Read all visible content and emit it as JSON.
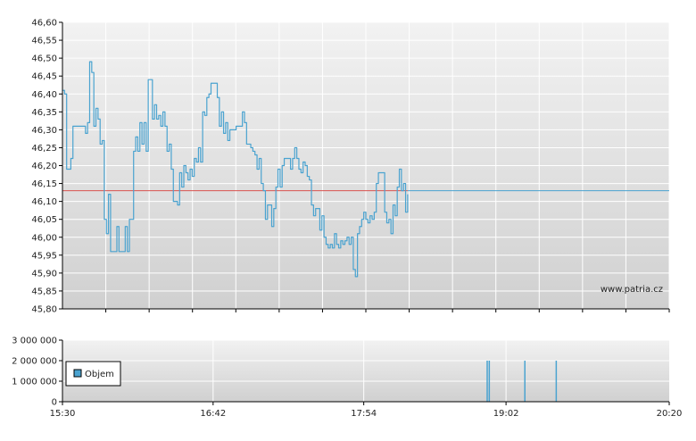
{
  "watermark": "www.patria.cz",
  "colors": {
    "price_line": "#4aa3d0",
    "reference_line": "#d9534f",
    "volume_bar": "#4aa3d0",
    "plot_bg_top": "#f2f2f2",
    "plot_bg_bottom": "#d0d0d0"
  },
  "chart_data": [
    {
      "type": "line",
      "title": "",
      "series": [
        {
          "values": [
            [
              "15:30",
              46.41
            ],
            [
              "15:31",
              46.4
            ],
            [
              "15:32",
              46.19
            ],
            [
              "15:33",
              46.19
            ],
            [
              "15:34",
              46.22
            ],
            [
              "15:35",
              46.31
            ],
            [
              "15:37",
              46.31
            ],
            [
              "15:40",
              46.31
            ],
            [
              "15:41",
              46.29
            ],
            [
              "15:42",
              46.32
            ],
            [
              "15:43",
              46.49
            ],
            [
              "15:44",
              46.46
            ],
            [
              "15:45",
              46.31
            ],
            [
              "15:46",
              46.36
            ],
            [
              "15:47",
              46.33
            ],
            [
              "15:48",
              46.26
            ],
            [
              "15:49",
              46.27
            ],
            [
              "15:50",
              46.05
            ],
            [
              "15:51",
              46.01
            ],
            [
              "15:52",
              46.12
            ],
            [
              "15:53",
              45.96
            ],
            [
              "15:55",
              45.96
            ],
            [
              "15:56",
              46.03
            ],
            [
              "15:57",
              45.96
            ],
            [
              "15:59",
              45.96
            ],
            [
              "16:00",
              46.03
            ],
            [
              "16:01",
              45.96
            ],
            [
              "16:02",
              46.05
            ],
            [
              "16:03",
              46.05
            ],
            [
              "16:04",
              46.24
            ],
            [
              "16:05",
              46.28
            ],
            [
              "16:06",
              46.24
            ],
            [
              "16:07",
              46.32
            ],
            [
              "16:08",
              46.26
            ],
            [
              "16:09",
              46.32
            ],
            [
              "16:10",
              46.24
            ],
            [
              "16:11",
              46.44
            ],
            [
              "16:12",
              46.44
            ],
            [
              "16:13",
              46.33
            ],
            [
              "16:14",
              46.37
            ],
            [
              "16:15",
              46.33
            ],
            [
              "16:16",
              46.34
            ],
            [
              "16:17",
              46.31
            ],
            [
              "16:18",
              46.35
            ],
            [
              "16:19",
              46.31
            ],
            [
              "16:20",
              46.24
            ],
            [
              "16:21",
              46.26
            ],
            [
              "16:22",
              46.19
            ],
            [
              "16:23",
              46.1
            ],
            [
              "16:25",
              46.09
            ],
            [
              "16:26",
              46.18
            ],
            [
              "16:27",
              46.14
            ],
            [
              "16:28",
              46.2
            ],
            [
              "16:29",
              46.18
            ],
            [
              "16:30",
              46.16
            ],
            [
              "16:31",
              46.19
            ],
            [
              "16:32",
              46.17
            ],
            [
              "16:33",
              46.22
            ],
            [
              "16:34",
              46.21
            ],
            [
              "16:35",
              46.25
            ],
            [
              "16:36",
              46.21
            ],
            [
              "16:37",
              46.35
            ],
            [
              "16:38",
              46.34
            ],
            [
              "16:39",
              46.39
            ],
            [
              "16:40",
              46.4
            ],
            [
              "16:41",
              46.43
            ],
            [
              "16:43",
              46.43
            ],
            [
              "16:44",
              46.39
            ],
            [
              "16:45",
              46.31
            ],
            [
              "16:46",
              46.35
            ],
            [
              "16:47",
              46.29
            ],
            [
              "16:48",
              46.32
            ],
            [
              "16:49",
              46.27
            ],
            [
              "16:50",
              46.3
            ],
            [
              "16:52",
              46.3
            ],
            [
              "16:53",
              46.31
            ],
            [
              "16:55",
              46.31
            ],
            [
              "16:56",
              46.35
            ],
            [
              "16:57",
              46.32
            ],
            [
              "16:58",
              46.26
            ],
            [
              "17:00",
              46.25
            ],
            [
              "17:01",
              46.24
            ],
            [
              "17:02",
              46.23
            ],
            [
              "17:03",
              46.19
            ],
            [
              "17:04",
              46.22
            ],
            [
              "17:05",
              46.15
            ],
            [
              "17:06",
              46.13
            ],
            [
              "17:07",
              46.05
            ],
            [
              "17:08",
              46.09
            ],
            [
              "17:09",
              46.09
            ],
            [
              "17:10",
              46.03
            ],
            [
              "17:11",
              46.08
            ],
            [
              "17:12",
              46.14
            ],
            [
              "17:13",
              46.19
            ],
            [
              "17:14",
              46.14
            ],
            [
              "17:15",
              46.2
            ],
            [
              "17:16",
              46.22
            ],
            [
              "17:18",
              46.22
            ],
            [
              "17:19",
              46.19
            ],
            [
              "17:20",
              46.22
            ],
            [
              "17:21",
              46.25
            ],
            [
              "17:22",
              46.22
            ],
            [
              "17:23",
              46.19
            ],
            [
              "17:24",
              46.18
            ],
            [
              "17:25",
              46.21
            ],
            [
              "17:26",
              46.2
            ],
            [
              "17:27",
              46.17
            ],
            [
              "17:28",
              46.16
            ],
            [
              "17:29",
              46.09
            ],
            [
              "17:30",
              46.06
            ],
            [
              "17:31",
              46.08
            ],
            [
              "17:32",
              46.08
            ],
            [
              "17:33",
              46.02
            ],
            [
              "17:34",
              46.06
            ],
            [
              "17:35",
              46.0
            ],
            [
              "17:36",
              45.98
            ],
            [
              "17:37",
              45.97
            ],
            [
              "17:38",
              45.98
            ],
            [
              "17:39",
              45.97
            ],
            [
              "17:40",
              46.01
            ],
            [
              "17:41",
              45.98
            ],
            [
              "17:42",
              45.97
            ],
            [
              "17:43",
              45.99
            ],
            [
              "17:44",
              45.98
            ],
            [
              "17:45",
              45.99
            ],
            [
              "17:46",
              46.0
            ],
            [
              "17:47",
              45.98
            ],
            [
              "17:48",
              46.0
            ],
            [
              "17:49",
              45.91
            ],
            [
              "17:50",
              45.89
            ],
            [
              "17:51",
              46.01
            ],
            [
              "17:52",
              46.03
            ],
            [
              "17:53",
              46.05
            ],
            [
              "17:54",
              46.07
            ],
            [
              "17:55",
              46.05
            ],
            [
              "17:56",
              46.04
            ],
            [
              "17:57",
              46.06
            ],
            [
              "17:58",
              46.05
            ],
            [
              "17:59",
              46.07
            ],
            [
              "18:00",
              46.15
            ],
            [
              "18:01",
              46.18
            ],
            [
              "18:03",
              46.18
            ],
            [
              "18:04",
              46.07
            ],
            [
              "18:05",
              46.04
            ],
            [
              "18:06",
              46.05
            ],
            [
              "18:07",
              46.01
            ],
            [
              "18:08",
              46.09
            ],
            [
              "18:09",
              46.06
            ],
            [
              "18:10",
              46.14
            ],
            [
              "18:11",
              46.19
            ],
            [
              "18:12",
              46.13
            ],
            [
              "18:13",
              46.15
            ],
            [
              "18:14",
              46.07
            ],
            [
              "18:15",
              46.12
            ]
          ]
        },
        {
          "values": [
            [
              "15:30",
              46.13
            ],
            [
              "20:20",
              46.13
            ]
          ]
        }
      ],
      "xlabel": "",
      "ylabel": "",
      "ylim": [
        45.8,
        46.6
      ],
      "xlim": [
        "15:30",
        "20:20"
      ],
      "y_ticks": [
        "45,80",
        "45,85",
        "45,90",
        "45,95",
        "46,00",
        "46,05",
        "46,10",
        "46,15",
        "46,20",
        "46,25",
        "46,30",
        "46,35",
        "46,40",
        "46,45",
        "46,50",
        "46,55",
        "46,60"
      ],
      "grid": true
    },
    {
      "type": "bar",
      "title": "",
      "legend": "Objem",
      "legend_position": "left",
      "series": [
        {
          "name": "Objem",
          "values": [
            [
              "18:53",
              2000000
            ],
            [
              "18:54",
              2000000
            ],
            [
              "19:11",
              2000000
            ],
            [
              "19:26",
              2000000
            ]
          ]
        }
      ],
      "ylim": [
        0,
        3000000
      ],
      "y_ticks": [
        "0",
        "1 000 000",
        "2 000 000",
        "3 000 000"
      ],
      "x_ticks": [
        "15:30",
        "16:42",
        "17:54",
        "19:02",
        "20:20"
      ],
      "xlim": [
        "15:30",
        "20:20"
      ],
      "grid": true
    }
  ]
}
